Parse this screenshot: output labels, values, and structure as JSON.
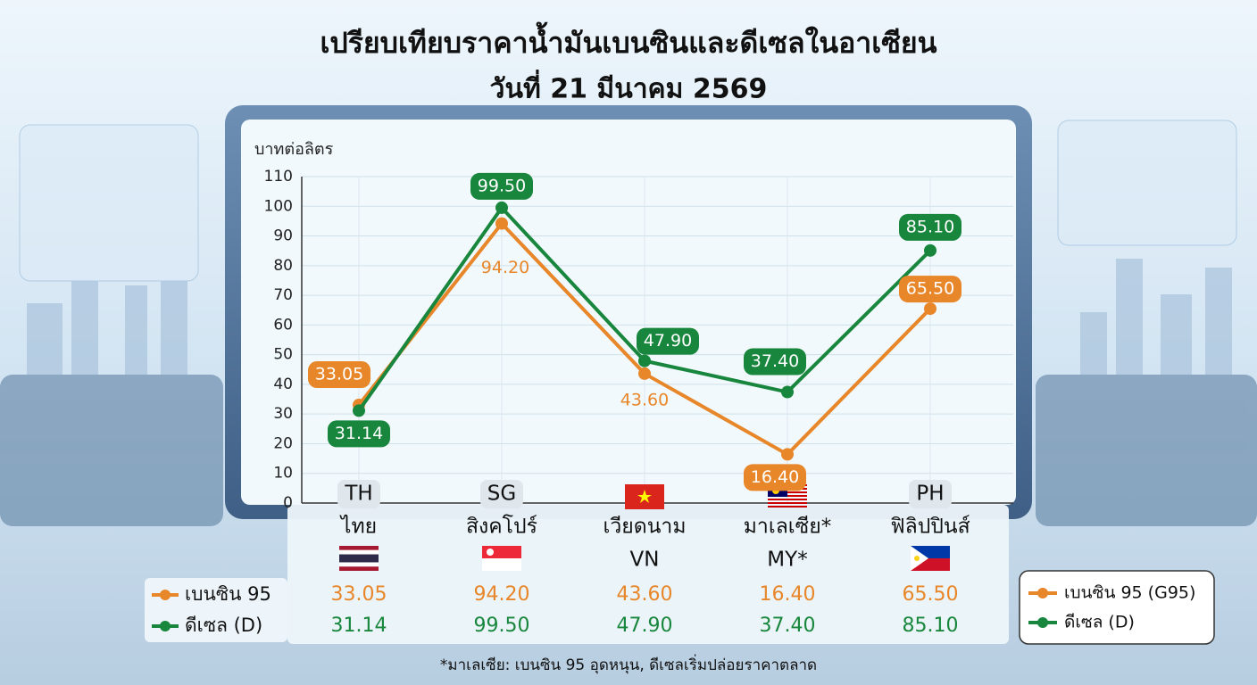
{
  "chart_data": {
    "type": "line",
    "title": "เปรียบเทียบราคาน้ำมันเบนซินและดีเซลในอาเซียน",
    "subtitle": "วันที่ 21 มีนาคม 2569",
    "y_label": "บาทต่อลิตร",
    "categories": [
      "ไทย",
      "สิงคโปร์",
      "เวียดนาม",
      "มาเลเซีย*",
      "ฟิลิปปินส์"
    ],
    "category_codes": [
      "TH",
      "SG",
      "VN",
      "MY*",
      "PH"
    ],
    "series": [
      {
        "name": "เบนซิน 95 (G95)",
        "table_label": "เบนซิน 95",
        "color": "#e8862a",
        "values": [
          33.05,
          94.2,
          43.6,
          16.4,
          65.5
        ],
        "value_labels": [
          "33.05",
          "94.20",
          "43.60",
          "16.40",
          "65.50"
        ]
      },
      {
        "name": "ดีเซล (D)",
        "table_label": "ดีเซล (D)",
        "color": "#18863c",
        "values": [
          31.14,
          99.5,
          47.9,
          37.4,
          85.1
        ],
        "value_labels": [
          "31.14",
          "99.50",
          "47.90",
          "37.40",
          "85.10"
        ]
      }
    ],
    "ylim": [
      0,
      110
    ],
    "yticks": [
      0,
      10,
      20,
      30,
      40,
      50,
      60,
      70,
      80,
      90,
      100,
      110
    ],
    "grid": true,
    "legend": "bottom-right",
    "footnote": "*มาเลเซีย: เบนซิน 95 อุดหนุน, ดีเซลเริ่มปล่อยราคาตลาด"
  }
}
